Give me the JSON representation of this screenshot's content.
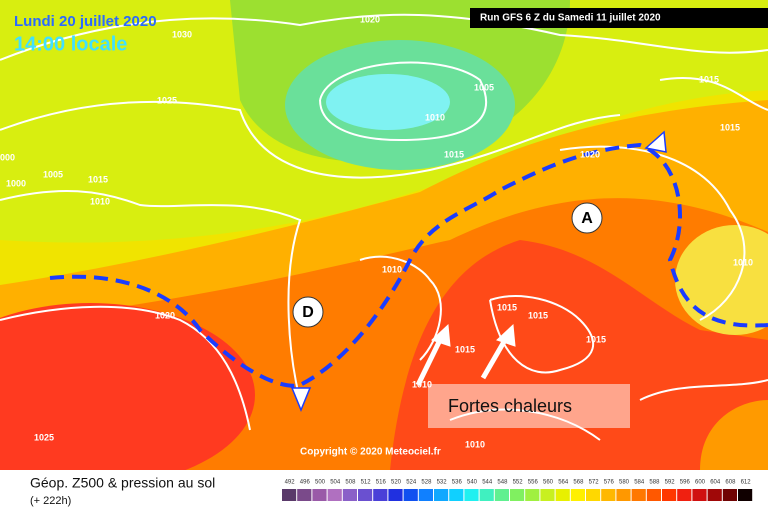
{
  "header": {
    "date": "Lundi 20 juillet 2020",
    "time": "14:00 locale",
    "run": "Run GFS 6 Z du Samedi 11 juillet 2020"
  },
  "map": {
    "isobar_labels": [
      1020,
      1030,
      1025,
      1005,
      1010,
      1015,
      1015,
      1015,
      1020,
      1010,
      1000,
      1005,
      1000,
      1015,
      1010,
      1010,
      1020,
      1015,
      1015,
      1015,
      1015,
      1010,
      1025,
      1010
    ],
    "pressure_centers": [
      "A",
      "D"
    ],
    "annotation": "Fortes chaleurs",
    "copyright": "Copyright © 2020 Meteociel.fr"
  },
  "footer": {
    "title": "Géop. Z500 & pression au sol",
    "lead": "(+ 222h)",
    "scale_labels": [
      492,
      496,
      500,
      504,
      508,
      512,
      516,
      520,
      524,
      528,
      532,
      536,
      540,
      544,
      548,
      552,
      556,
      560,
      564,
      568,
      572,
      576,
      580,
      584,
      588,
      592,
      596,
      600,
      604,
      608,
      612
    ],
    "scale_colors": [
      "#5a3a6a",
      "#7a4a8a",
      "#9a5aa8",
      "#b070c0",
      "#8a60c8",
      "#6a50d0",
      "#4a40d8",
      "#2030e0",
      "#1050f0",
      "#1080ff",
      "#10a8ff",
      "#10d0ff",
      "#20f0f0",
      "#40f0c0",
      "#60f090",
      "#80f060",
      "#a0f040",
      "#c8f020",
      "#e8f000",
      "#fff000",
      "#ffd800",
      "#ffb800",
      "#ff9800",
      "#ff7800",
      "#ff5800",
      "#ff3800",
      "#f02010",
      "#d01010",
      "#a00808",
      "#700404",
      "#100000"
    ]
  }
}
